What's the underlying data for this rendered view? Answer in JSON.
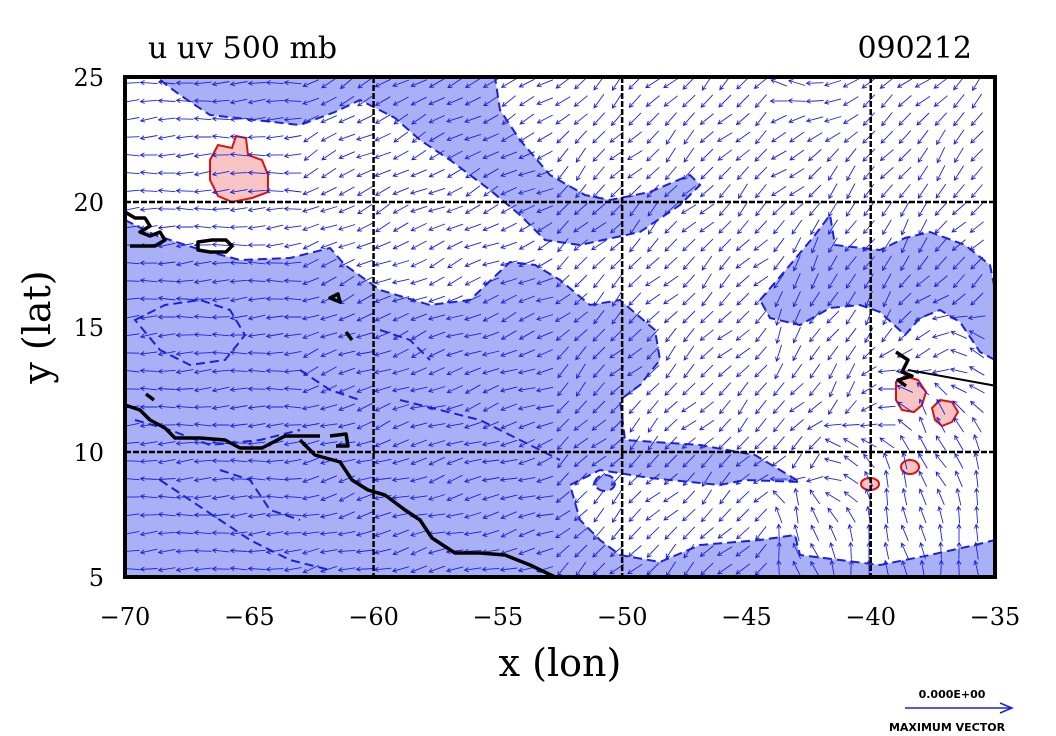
{
  "title": "u  uv 500  mb",
  "date": "090212",
  "xlabel": "x (lon)",
  "ylabel": "y (lat)",
  "x_ticks": [
    "−70",
    "−65",
    "−60",
    "−55",
    "−50",
    "−45",
    "−40",
    "−35"
  ],
  "y_ticks": [
    "25",
    "20",
    "15",
    "10",
    "5"
  ],
  "lon_range": [
    -70,
    -35
  ],
  "lat_range": [
    5,
    25
  ],
  "grid_lon": [
    -60,
    -50,
    -40
  ],
  "grid_lat": [
    20,
    10
  ],
  "reference_vector": {
    "value": "0.000E+00",
    "label": "MAXIMUM  VECTOR"
  },
  "colors": {
    "negative_fill": "#aab0f5",
    "negative_contour": "#1a22d8",
    "positive_fill": "#f8c4c4",
    "positive_contour": "#e01010",
    "vectors": "#1a22d8",
    "coastline": "#000000"
  }
}
